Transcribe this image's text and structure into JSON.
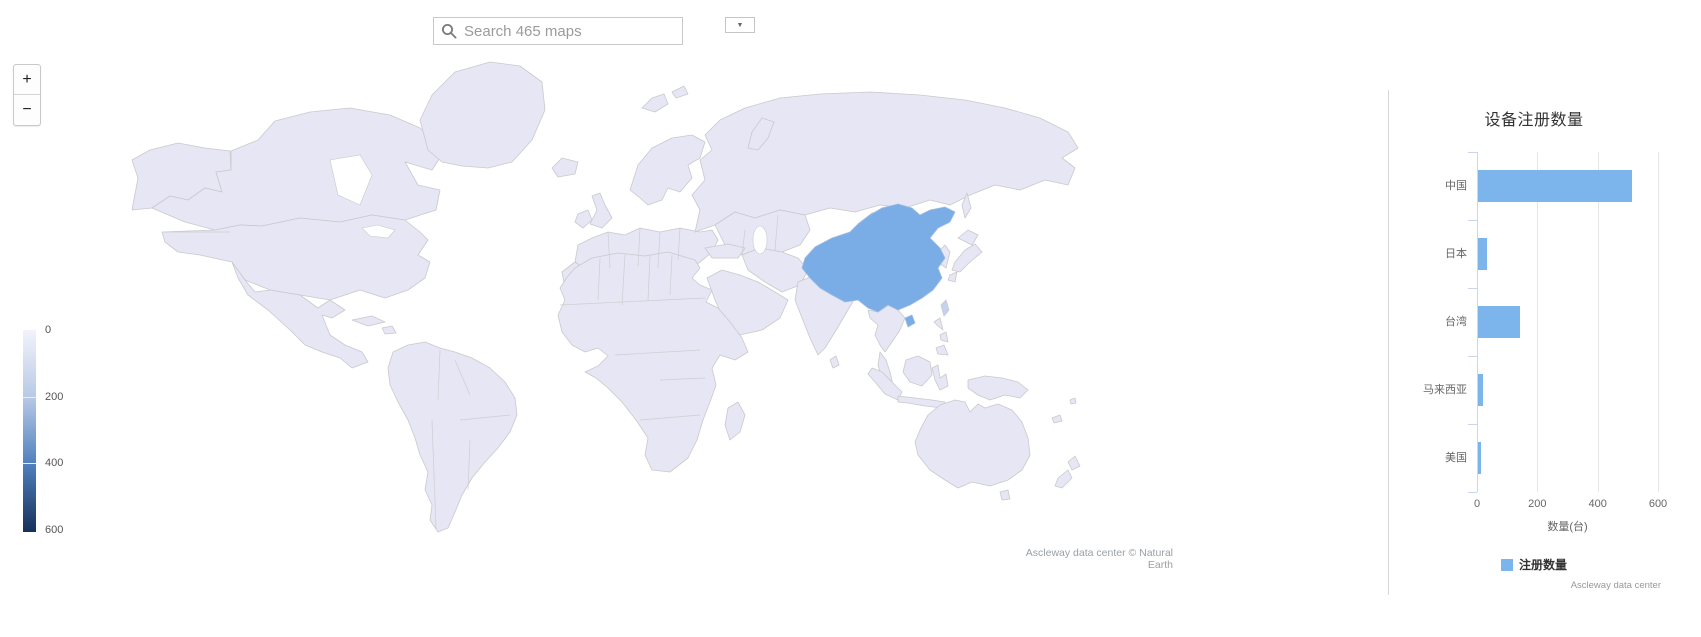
{
  "toolbar": {
    "search_placeholder": "Search 465 maps",
    "dropdown_icon": "▼"
  },
  "map": {
    "zoom_in_label": "+",
    "zoom_out_label": "−",
    "attribution": "Ascleway data center © Natural Earth",
    "highlighted_country": "China",
    "colors": {
      "country_fill": "#e6e6f4",
      "border": "#c9c9cd",
      "highlight": "#7aade6"
    },
    "color_legend": {
      "min": 0,
      "max": 600,
      "ticks": [
        "0",
        "200",
        "400",
        "600"
      ],
      "gradient": [
        "#f2f3fb",
        "#b7c9e6",
        "#4f7fbd",
        "#163059"
      ]
    }
  },
  "chart_data": {
    "type": "bar",
    "title": "设备注册数量",
    "categories": [
      "中国",
      "日本",
      "台湾",
      "马来西亚",
      "美国"
    ],
    "series": [
      {
        "name": "注册数量",
        "values": [
          510,
          30,
          140,
          16,
          11
        ],
        "color": "#7cb5ec"
      }
    ],
    "xlabel": "数量(台)",
    "xticks": [
      0,
      200,
      400,
      600
    ],
    "xlim": [
      0,
      600
    ],
    "grid": true,
    "legend_position": "bottom-center",
    "credits": "Ascleway data center"
  }
}
